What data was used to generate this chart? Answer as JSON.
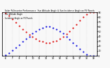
{
  "title": "Solar PV/Inverter Performance  Sun Altitude Angle & Sun Incidence Angle on PV Panels",
  "background_color": "#f8f8f8",
  "grid_color": "#aaaaaa",
  "blue_color": "#0000dd",
  "red_color": "#dd0000",
  "legend_altitude": "Sun Altitude Angle",
  "legend_incidence": "Incidence Angle on PV Panels",
  "x_hours": [
    5.5,
    6,
    6.5,
    7,
    7.5,
    8,
    8.5,
    9,
    9.5,
    10,
    10.5,
    11,
    11.5,
    12,
    12.5,
    13,
    13.5,
    14,
    14.5,
    15,
    15.5,
    16,
    16.5,
    17,
    17.5,
    18,
    18.5,
    19,
    19.5
  ],
  "altitude_vals": [
    0,
    2,
    6,
    11,
    17,
    23,
    29,
    35,
    40,
    46,
    51,
    55,
    58,
    60,
    60,
    58,
    55,
    51,
    46,
    40,
    34,
    27,
    21,
    14,
    8,
    3,
    0,
    0,
    0
  ],
  "incidence_vals": [
    90,
    88,
    83,
    76,
    69,
    62,
    55,
    49,
    44,
    39,
    35,
    31,
    29,
    27,
    27,
    29,
    31,
    35,
    40,
    45,
    51,
    58,
    65,
    73,
    80,
    86,
    90,
    90,
    90
  ],
  "ylim": [
    0,
    90
  ],
  "yticks_right": [
    0,
    10,
    20,
    30,
    40,
    50,
    60,
    70,
    80,
    90
  ],
  "xlim": [
    5.5,
    19.5
  ],
  "xtick_positions": [
    6,
    7,
    8,
    9,
    10,
    11,
    12,
    13,
    14,
    15,
    16,
    17,
    18,
    19
  ],
  "xtick_labels": [
    "6",
    "7",
    "8",
    "9",
    "10",
    "11",
    "12",
    "13",
    "14",
    "15",
    "16",
    "17",
    "18",
    "19"
  ]
}
